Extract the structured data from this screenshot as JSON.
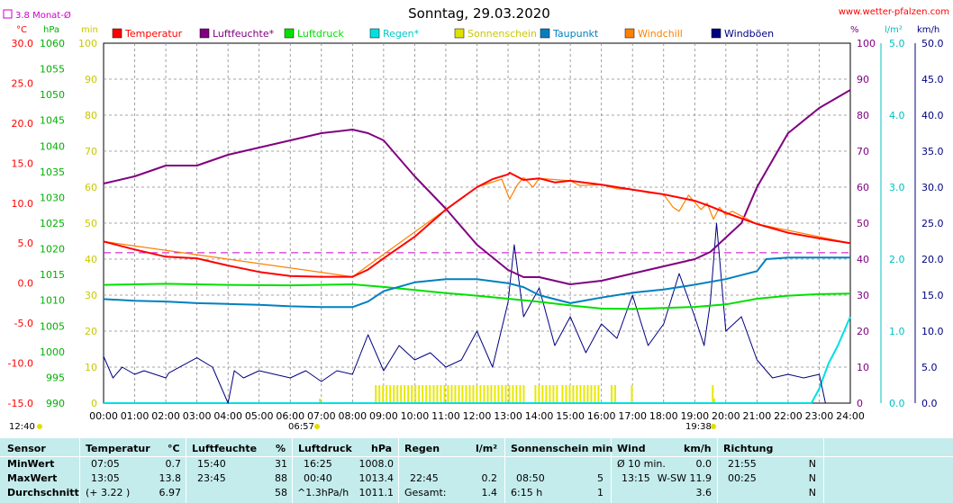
{
  "header": {
    "title": "Sonntag, 29.03.2020",
    "site": "www.wetter-pfalzen.com",
    "month_avg_label": "3.8 Monat-Ø"
  },
  "colors": {
    "temperature": "#ff0000",
    "humidity": "#800080",
    "pressure": "#00e000",
    "rain": "#00e0e0",
    "sunshine": "#e0e000",
    "dewpoint": "#0080c0",
    "windchill": "#ff8000",
    "gusts": "#000080",
    "background_table": "#c4ecec"
  },
  "axes": {
    "temp_unit": "°C",
    "pressure_unit": "hPa",
    "sun_unit": "min",
    "humidity_unit": "%",
    "rain_unit": "l/m²",
    "wind_unit": "km/h",
    "temp_ticks": [
      "30.0",
      "25.0",
      "20.0",
      "15.0",
      "10.0",
      "5.0",
      "0.0",
      "-5.0",
      "-10.0",
      "-15.0"
    ],
    "pressure_ticks": [
      "1060",
      "1055",
      "1050",
      "1045",
      "1040",
      "1035",
      "1030",
      "1025",
      "1020",
      "1015",
      "1010",
      "1005",
      "1000",
      "995",
      "990"
    ],
    "sun_ticks": [
      "100",
      "90",
      "80",
      "70",
      "60",
      "50",
      "40",
      "30",
      "20",
      "10",
      "0"
    ],
    "humidity_ticks": [
      "100",
      "90",
      "80",
      "70",
      "60",
      "50",
      "40",
      "30",
      "20",
      "10",
      "0"
    ],
    "rain_ticks": [
      "5.0",
      "4.0",
      "3.0",
      "2.0",
      "1.0",
      "0.0"
    ],
    "wind_ticks": [
      "50.0",
      "45.0",
      "40.0",
      "35.0",
      "30.0",
      "25.0",
      "20.0",
      "15.0",
      "10.0",
      "5.0",
      "0.0"
    ],
    "x_ticks": [
      "00:00",
      "01:00",
      "02:00",
      "03:00",
      "04:00",
      "05:00",
      "06:00",
      "07:00",
      "08:00",
      "09:00",
      "10:00",
      "11:00",
      "12:00",
      "13:00",
      "14:00",
      "15:00",
      "16:00",
      "17:00",
      "18:00",
      "19:00",
      "20:00",
      "21:00",
      "22:00",
      "23:00",
      "24:00"
    ],
    "sunrise": "06:57",
    "sunset": "19:38",
    "daylength": "12:40"
  },
  "legend": [
    {
      "label": "Temperatur",
      "color": "#ff0000"
    },
    {
      "label": "Luftfeuchte*",
      "color": "#800080"
    },
    {
      "label": "Luftdruck",
      "color": "#00e000"
    },
    {
      "label": "Regen*",
      "color": "#00e0e0"
    },
    {
      "label": "Sonnenschein",
      "color": "#e0e000"
    },
    {
      "label": "Taupunkt",
      "color": "#0080c0"
    },
    {
      "label": "Windchill",
      "color": "#ff8000"
    },
    {
      "label": "Windböen",
      "color": "#000080"
    }
  ],
  "chart_data": {
    "type": "line",
    "title": "Sonntag, 29.03.2020",
    "x_range_hours": [
      0,
      24
    ],
    "monthly_average_temp": 3.8,
    "series": [
      {
        "name": "Temperatur",
        "axis": "temp",
        "x": [
          0,
          1,
          2,
          3,
          4,
          5,
          6,
          7,
          8,
          8.5,
          9,
          10,
          11,
          12,
          12.5,
          13,
          13.05,
          13.5,
          14,
          14.5,
          15,
          16,
          17,
          18,
          19,
          19.5,
          20,
          21,
          22,
          23,
          24
        ],
        "values": [
          5.2,
          4.2,
          3.3,
          3.1,
          2.2,
          1.4,
          0.9,
          0.8,
          0.8,
          1.7,
          3.1,
          5.8,
          9.2,
          12.0,
          13.0,
          13.6,
          13.8,
          12.9,
          13.1,
          12.6,
          12.8,
          12.3,
          11.7,
          11.1,
          10.3,
          9.6,
          8.8,
          7.4,
          6.3,
          5.6,
          5.0
        ]
      },
      {
        "name": "Windchill",
        "axis": "temp",
        "x": [
          0,
          8,
          12,
          12.8,
          13.05,
          13.3,
          13.5,
          13.8,
          14,
          15,
          15.3,
          16,
          16.5,
          17,
          17.5,
          18,
          18.3,
          18.5,
          18.8,
          19.2,
          19.4,
          19.6,
          19.8,
          20,
          20.2,
          21,
          24
        ],
        "values": [
          5.2,
          0.8,
          12.0,
          13.0,
          10.5,
          12.3,
          13.2,
          12.0,
          13.1,
          12.8,
          12.2,
          12.3,
          11.8,
          11.7,
          11.3,
          11.1,
          9.5,
          9.0,
          11.0,
          9.2,
          10.0,
          8.0,
          9.5,
          8.5,
          9.0,
          7.4,
          5.0
        ]
      },
      {
        "name": "Luftfeuchte*",
        "axis": "humidity",
        "x": [
          0,
          1,
          2,
          3,
          4,
          5,
          6,
          7,
          8,
          8.5,
          9,
          10,
          11,
          12,
          13,
          13.5,
          14,
          15,
          16,
          17,
          17.5,
          18,
          18.5,
          19,
          19.5,
          20,
          20.5,
          21,
          22,
          23,
          24
        ],
        "values": [
          61,
          63,
          66,
          66,
          69,
          71,
          73,
          75,
          76,
          75,
          73,
          63,
          54,
          44,
          37,
          35,
          35,
          33,
          34,
          36,
          37,
          38,
          39,
          40,
          42,
          46,
          50,
          60,
          75,
          82,
          87
        ]
      },
      {
        "name": "Luftdruck",
        "axis": "pressure",
        "x": [
          0,
          2,
          4,
          6,
          8,
          9,
          10,
          11,
          12,
          13,
          14,
          15,
          16,
          17,
          18,
          19,
          20,
          21,
          22,
          23,
          24
        ],
        "values": [
          1013.0,
          1013.2,
          1013.0,
          1012.9,
          1013.1,
          1012.6,
          1012.0,
          1011.4,
          1010.9,
          1010.3,
          1009.7,
          1009.0,
          1008.4,
          1008.3,
          1008.5,
          1008.7,
          1009.2,
          1010.3,
          1010.9,
          1011.2,
          1011.3
        ]
      },
      {
        "name": "Taupunkt",
        "axis": "temp",
        "x": [
          0,
          1,
          2,
          3,
          4,
          5,
          6,
          7,
          8,
          8.5,
          9,
          10,
          11,
          12,
          13,
          13.5,
          14,
          15,
          16,
          17,
          18,
          19,
          20,
          21,
          21.3,
          22,
          23,
          24
        ],
        "values": [
          -2.0,
          -2.2,
          -2.3,
          -2.5,
          -2.6,
          -2.7,
          -2.9,
          -3.0,
          -3.0,
          -2.3,
          -1.0,
          0.1,
          0.5,
          0.5,
          0.0,
          -0.5,
          -1.5,
          -2.5,
          -1.8,
          -1.2,
          -0.8,
          -0.2,
          0.5,
          1.5,
          3.0,
          3.2,
          3.2,
          3.2
        ]
      },
      {
        "name": "Windböen",
        "axis": "wind",
        "x": [
          0,
          0.3,
          0.6,
          1,
          1.3,
          2,
          2.1,
          3,
          3.5,
          4,
          4.2,
          4.5,
          5,
          6,
          6.5,
          7,
          7.5,
          8,
          8.5,
          9,
          9.5,
          10,
          10.5,
          11,
          11.5,
          12,
          12.5,
          13,
          13.2,
          13.5,
          14,
          14.5,
          15,
          15.5,
          16,
          16.5,
          17,
          17.5,
          18,
          18.5,
          19,
          19.3,
          19.5,
          19.7,
          20,
          20.5,
          21,
          21.5,
          22,
          22.5,
          23,
          23.2
        ],
        "values": [
          6.5,
          3.5,
          5,
          4,
          4.5,
          3.5,
          4.2,
          6.3,
          5,
          0,
          4.5,
          3.5,
          4.5,
          3.5,
          4.5,
          3,
          4.5,
          4,
          9.5,
          4.5,
          8,
          6,
          7,
          5,
          6,
          10,
          5,
          14,
          22,
          12,
          16,
          8,
          12,
          7,
          11,
          9,
          15,
          8,
          11,
          18,
          12,
          8,
          14,
          25,
          10,
          12,
          6,
          3.5,
          4,
          3.5,
          4,
          0
        ]
      }
    ],
    "sunshine_periods_hours": [
      [
        8.72,
        10.55
      ],
      [
        10.58,
        13.55
      ],
      [
        13.85,
        14.6
      ],
      [
        14.72,
        15.95
      ],
      [
        16.3,
        16.45
      ],
      [
        16.95,
        17.05
      ],
      [
        19.55,
        19.62
      ]
    ],
    "rain_series": {
      "axis": "rain",
      "x": [
        22.75,
        23.0,
        23.3,
        23.6,
        23.9,
        24.0
      ],
      "values": [
        0.0,
        0.2,
        0.55,
        0.8,
        1.1,
        1.2
      ]
    },
    "ylim_temp": [
      -15,
      30
    ],
    "ylim_pressure": [
      990,
      1060
    ],
    "ylim_humidity": [
      0,
      100
    ],
    "ylim_rain": [
      0,
      5
    ],
    "ylim_wind": [
      0,
      50
    ]
  },
  "table": {
    "headers": {
      "sensor": "Sensor",
      "temperature": "Temperatur",
      "temperature_unit": "°C",
      "humidity": "Luftfeuchte",
      "humidity_unit": "%",
      "pressure": "Luftdruck",
      "pressure_unit": "hPa",
      "rain": "Regen",
      "rain_unit": "l/m²",
      "sunshine": "Sonnenschein min",
      "wind": "Wind",
      "wind_unit": "km/h",
      "direction": "Richtung"
    },
    "rows": [
      {
        "label": "MinWert",
        "temp_time": "07:05",
        "temp_val": "0.7",
        "hum_time": "15:40",
        "hum_val": "31",
        "press_time": "16:25",
        "press_val": "1008.0",
        "rain_time": "",
        "rain_val": "",
        "sun_time": "",
        "sun_val": "",
        "wind_time": "Ø 10 min.",
        "wind_val": "0.0",
        "dir_time": "21:55",
        "dir_val": "N"
      },
      {
        "label": "MaxWert",
        "temp_time": "13:05",
        "temp_val": "13.8",
        "hum_time": "23:45",
        "hum_val": "88",
        "press_time": "00:40",
        "press_val": "1013.4",
        "rain_time": "22:45",
        "rain_val": "0.2",
        "sun_time": "08:50",
        "sun_val": "5",
        "wind_time": "13:15",
        "wind_val": "W-SW 11.9",
        "dir_time": "00:25",
        "dir_val": "N"
      },
      {
        "label": "Durchschnitt",
        "temp_time": "(+ 3.22 )",
        "temp_val": "6.97",
        "hum_time": "",
        "hum_val": "58",
        "press_time": "^1.3hPa/h",
        "press_val": "1011.1",
        "rain_time": "Gesamt:",
        "rain_val": "1.4",
        "sun_time": "6:15 h",
        "sun_val": "1",
        "wind_time": "",
        "wind_val": "3.6",
        "dir_time": "",
        "dir_val": "N"
      }
    ]
  }
}
